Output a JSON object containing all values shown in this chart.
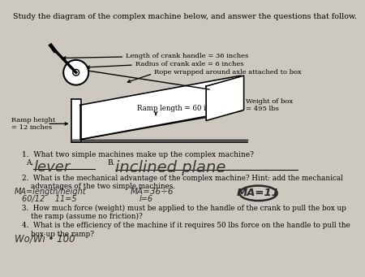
{
  "bg_color": "#cdc9c0",
  "title": "Study the diagram of the complex machine below, and answer the questions that follow.",
  "handle_label": "Length of crank handle = 36 inches",
  "axle_label": "Radius of crank axle = 6 inches",
  "rope_label": "Rope wrapped around axle attached to box",
  "ramp_label": "Ramp length = 60 inches",
  "ramp_height_label": "Ramp height\n= 12 inches",
  "weight_label": "Weight of box\n= 495 lbs",
  "q1_text": "1.  What two simple machines make up the complex machine?",
  "q1_a_label": "A.",
  "q1_a_answer": "lever",
  "q1_b_label": "B.",
  "q1_b_answer": "inclined plane",
  "q2_text": "2.  What is the mechanical advantage of the complex machine? Hint: add the mechanical\n    advantages of the two simple machines.",
  "q2_hw1a": "MA=length/height",
  "q2_hw1b": "MA=36÷6",
  "q2_hw_circled": "MA=11",
  "q2_hw2a": "60/12    11=5",
  "q2_hw2b": "l=6",
  "q3_text": "3.  How much force (weight) must be applied to the handle of the crank to pull the box up\n    the ramp (assume no friction)?",
  "q4_text": "4.  What is the efficiency of the machine if it requires 50 lbs force on the handle to pull the\n    box up the ramp?",
  "q4_handwritten": "Wo/Wi • 100"
}
